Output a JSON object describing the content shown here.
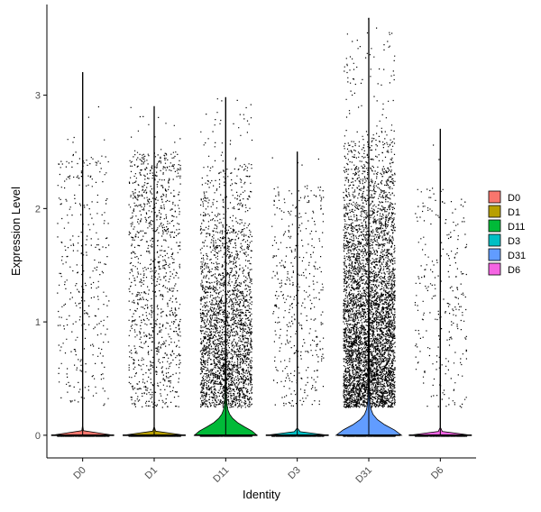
{
  "chart_data": {
    "type": "violin",
    "title": "",
    "xlabel": "Identity",
    "ylabel": "Expression Level",
    "ylim": [
      -0.2,
      3.8
    ],
    "yticks": [
      0,
      1,
      2,
      3
    ],
    "categories": [
      "D0",
      "D1",
      "D11",
      "D3",
      "D31",
      "D6"
    ],
    "series": [
      {
        "name": "D0",
        "color": "#F8766D",
        "max": 3.2,
        "upper_dense": 2.5,
        "n_cells": 1300,
        "zero_frac": 0.75,
        "violin_peak_width": 0.0,
        "violin_peak_top": 0.0
      },
      {
        "name": "D1",
        "color": "#B79F00",
        "max": 2.9,
        "upper_dense": 2.5,
        "n_cells": 2600,
        "zero_frac": 0.55,
        "violin_peak_width": 0.0,
        "violin_peak_top": 0.0
      },
      {
        "name": "D11",
        "color": "#00BA38",
        "max": 2.98,
        "upper_dense": 2.4,
        "n_cells": 4200,
        "zero_frac": 0.35,
        "violin_peak_width": 0.42,
        "violin_peak_top": 1.45
      },
      {
        "name": "D3",
        "color": "#00BFC4",
        "max": 2.5,
        "upper_dense": 2.2,
        "n_cells": 1700,
        "zero_frac": 0.72,
        "violin_peak_width": 0.0,
        "violin_peak_top": 0.0
      },
      {
        "name": "D31",
        "color": "#619CFF",
        "max": 3.68,
        "upper_dense": 2.7,
        "n_cells": 6500,
        "zero_frac": 0.2,
        "violin_peak_width": 0.44,
        "violin_peak_top": 2.0
      },
      {
        "name": "D6",
        "color": "#F564E3",
        "max": 2.7,
        "upper_dense": 2.2,
        "n_cells": 1300,
        "zero_frac": 0.8,
        "violin_peak_width": 0.0,
        "violin_peak_top": 0.0
      }
    ],
    "legend": {
      "position": "right",
      "entries": [
        "D0",
        "D1",
        "D11",
        "D3",
        "D31",
        "D6"
      ]
    },
    "grid": false
  }
}
